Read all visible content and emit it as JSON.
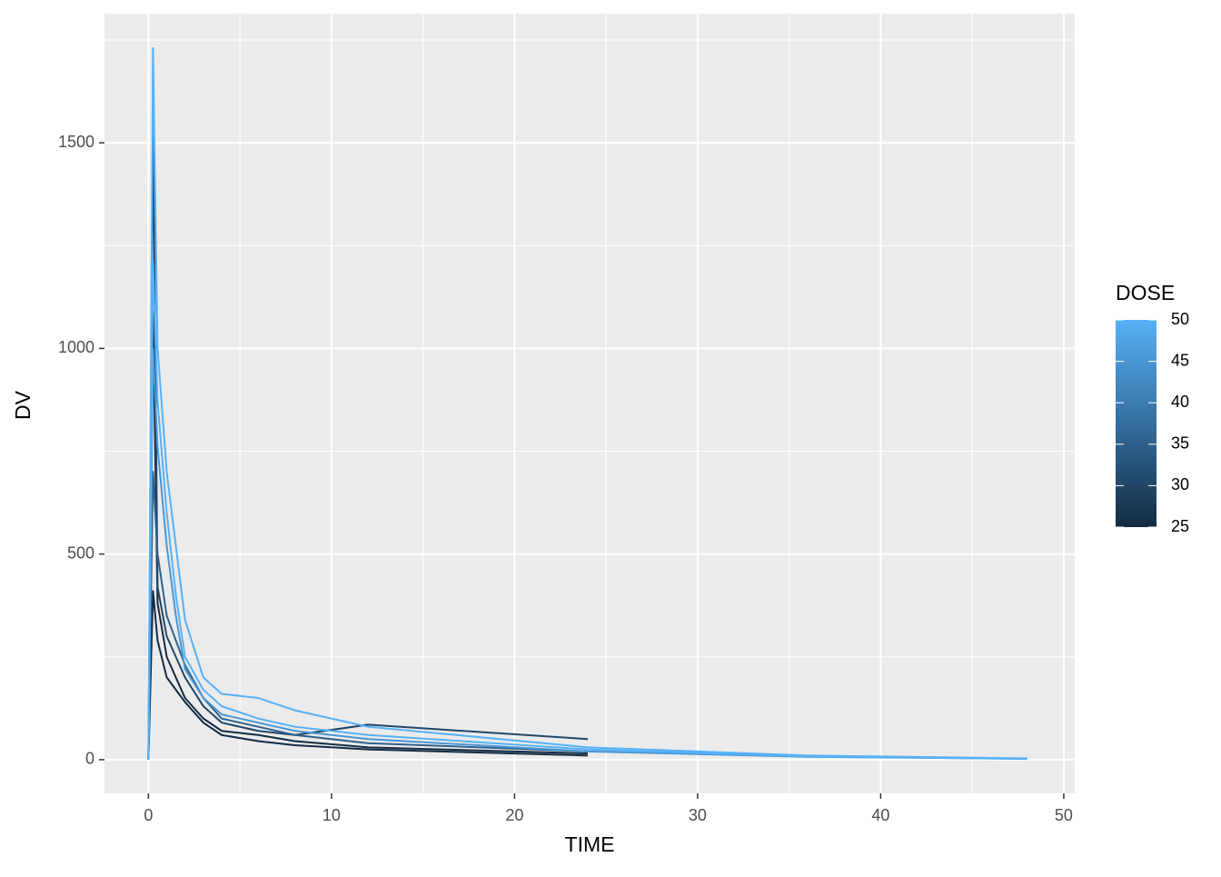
{
  "chart_data": {
    "type": "line",
    "x_label": "TIME",
    "y_label": "DV",
    "xlim": [
      -2.4,
      50.6
    ],
    "ylim": [
      -82,
      1814
    ],
    "xticks": [
      0,
      10,
      20,
      30,
      40,
      50
    ],
    "yticks": [
      0,
      500,
      1000,
      1500
    ],
    "minor_xticks": [
      5,
      15,
      25,
      35,
      45
    ],
    "minor_yticks": [
      250,
      750,
      1250,
      1750
    ],
    "grid": true,
    "colorbar": {
      "title": "DOSE",
      "low": "#132B43",
      "high": "#56B1F7",
      "limits": [
        25,
        50
      ],
      "ticks": [
        25,
        30,
        35,
        40,
        45,
        50
      ]
    },
    "series": [
      {
        "dose": 25,
        "x": [
          0,
          0.25,
          0.5,
          1,
          2,
          3,
          4,
          6,
          8,
          12,
          24
        ],
        "values": [
          0,
          1090,
          380,
          250,
          150,
          100,
          70,
          60,
          45,
          30,
          15
        ]
      },
      {
        "dose": 25,
        "x": [
          0,
          0.25,
          0.5,
          1,
          2,
          3,
          4,
          6,
          8,
          12,
          24
        ],
        "values": [
          0,
          410,
          290,
          200,
          140,
          90,
          60,
          45,
          35,
          25,
          10
        ]
      },
      {
        "dose": 30,
        "x": [
          0,
          0.25,
          0.5,
          1,
          2,
          3,
          4,
          6,
          8,
          12,
          24
        ],
        "values": [
          0,
          1550,
          420,
          300,
          200,
          130,
          90,
          70,
          60,
          85,
          50
        ]
      },
      {
        "dose": 35,
        "x": [
          0,
          0.25,
          0.5,
          1,
          2,
          3,
          4,
          6,
          8,
          12,
          24
        ],
        "values": [
          0,
          700,
          500,
          350,
          230,
          150,
          100,
          80,
          60,
          40,
          20
        ]
      },
      {
        "dose": 45,
        "x": [
          0,
          0.25,
          0.5,
          1,
          1.5,
          2,
          3,
          4,
          6,
          8,
          12,
          24,
          36,
          48
        ],
        "values": [
          0,
          1000,
          760,
          520,
          350,
          220,
          150,
          110,
          90,
          70,
          50,
          20,
          7,
          2
        ]
      },
      {
        "dose": 50,
        "x": [
          0,
          0.25,
          0.5,
          1,
          1.5,
          2,
          3,
          4,
          6,
          8,
          12,
          24,
          36,
          48
        ],
        "values": [
          0,
          1210,
          870,
          600,
          400,
          250,
          170,
          130,
          100,
          80,
          60,
          25,
          8,
          2
        ]
      },
      {
        "dose": 50,
        "x": [
          0,
          0.25,
          0.5,
          1,
          1.5,
          2,
          3,
          4,
          6,
          8,
          12,
          24,
          36,
          48
        ],
        "values": [
          0,
          1730,
          1000,
          700,
          520,
          340,
          200,
          160,
          150,
          120,
          80,
          30,
          10,
          3
        ]
      }
    ]
  }
}
